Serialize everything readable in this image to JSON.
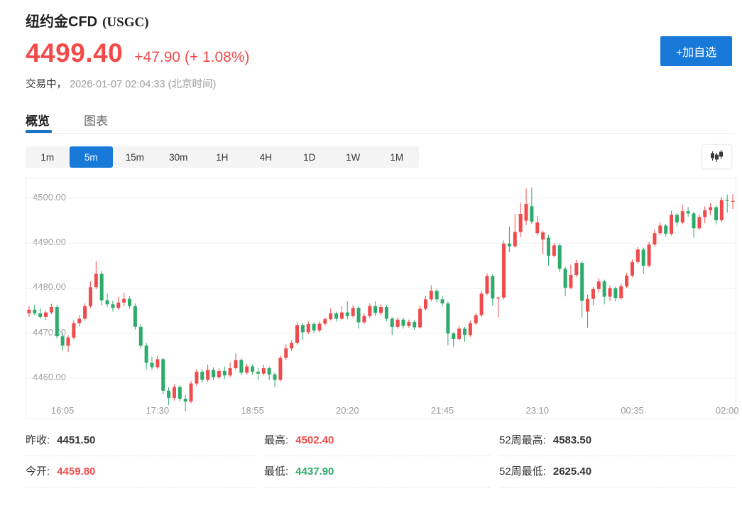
{
  "header": {
    "title": "纽约金CFD",
    "symbol": "(USGC)",
    "price": "4499.40",
    "change": "+47.90 (+ 1.08%)",
    "status": "交易中，",
    "datetime": "2026-01-07 02:04:33 (北京时间)",
    "add_watchlist_label": "+加自选"
  },
  "tabs": [
    {
      "label": "概览",
      "active": true
    },
    {
      "label": "图表",
      "active": false
    }
  ],
  "timeframes": {
    "options": [
      "1m",
      "5m",
      "15m",
      "30m",
      "1H",
      "4H",
      "1D",
      "1W",
      "1M"
    ],
    "active": "5m"
  },
  "icons": {
    "chart_style": "candlestick-chart-icon"
  },
  "colors": {
    "accent_blue": "#1879d9",
    "tab_underline_blue": "#1a72c2",
    "text_red": "#f24a48",
    "text_green": "#2cab6b",
    "candle_up_red": "#ef4b4d",
    "candle_down_green": "#2cab6b",
    "axis_text": "#999999",
    "gridline": "#f0f0f0"
  },
  "stats": {
    "columns": [
      [
        {
          "label": "昨收:",
          "value": "4451.50"
        },
        {
          "label": "今开:",
          "value": "4459.80"
        }
      ],
      [
        {
          "label": "最高:",
          "value": "4502.40"
        },
        {
          "label": "最低:",
          "value": "4437.90"
        }
      ],
      [
        {
          "label": "52周最高:",
          "value": "4583.50"
        },
        {
          "label": "52周最低:",
          "value": "2625.40"
        }
      ]
    ]
  },
  "chart_data": {
    "type": "candlestick",
    "title": "纽约金CFD (USGC) 5m",
    "interval": "5m",
    "convention": "red=up, green=down (CN)",
    "y_ticks": [
      4500,
      4490,
      4480,
      4470,
      4460
    ],
    "y_tick_labels": [
      "4500.00",
      "4490.00",
      "4480.00",
      "4470.00",
      "4460.00"
    ],
    "x_labels": [
      "16:05",
      "17:30",
      "18:55",
      "20:20",
      "21:45",
      "23:10",
      "00:35",
      "02:00"
    ],
    "x_label_indices": [
      6,
      23,
      40,
      57,
      74,
      91,
      108,
      125
    ],
    "price_top_visible": 4504.4,
    "price_bottom_visible": 4451.0,
    "grid": true,
    "candles_ohlc": [
      [
        4474.4,
        4476.0,
        4473.6,
        4475.2
      ],
      [
        4475.2,
        4476.3,
        4474.0,
        4474.4
      ],
      [
        4474.4,
        4475.5,
        4473.2,
        4473.6
      ],
      [
        4473.6,
        4475.0,
        4472.9,
        4474.6
      ],
      [
        4474.6,
        4476.5,
        4474.2,
        4475.8
      ],
      [
        4475.8,
        4476.2,
        4468.8,
        4469.3
      ],
      [
        4469.3,
        4470.1,
        4466.0,
        4467.2
      ],
      [
        4467.2,
        4469.6,
        4465.8,
        4469.0
      ],
      [
        4469.0,
        4472.8,
        4468.6,
        4472.2
      ],
      [
        4472.2,
        4474.0,
        4471.5,
        4473.2
      ],
      [
        4473.2,
        4476.6,
        4472.8,
        4476.0
      ],
      [
        4476.0,
        4481.5,
        4475.6,
        4480.2
      ],
      [
        4480.2,
        4486.0,
        4479.8,
        4483.2
      ],
      [
        4483.2,
        4483.8,
        4476.2,
        4477.3
      ],
      [
        4477.3,
        4478.8,
        4475.8,
        4476.4
      ],
      [
        4476.4,
        4477.2,
        4474.8,
        4475.6
      ],
      [
        4475.6,
        4478.0,
        4475.2,
        4476.8
      ],
      [
        4476.8,
        4479.0,
        4476.0,
        4477.6
      ],
      [
        4477.6,
        4478.2,
        4475.4,
        4476.0
      ],
      [
        4476.0,
        4476.6,
        4470.8,
        4471.4
      ],
      [
        4471.4,
        4472.0,
        4466.6,
        4467.2
      ],
      [
        4467.2,
        4467.8,
        4461.9,
        4463.4
      ],
      [
        4463.4,
        4464.8,
        4461.8,
        4462.4
      ],
      [
        4462.4,
        4465.0,
        4462.0,
        4464.2
      ],
      [
        4464.2,
        4464.6,
        4456.4,
        4457.2
      ],
      [
        4457.2,
        4458.0,
        4454.0,
        4455.6
      ],
      [
        4455.6,
        4458.6,
        4455.0,
        4458.0
      ],
      [
        4458.0,
        4458.4,
        4454.8,
        4455.4
      ],
      [
        4455.4,
        4456.2,
        4452.6,
        4454.8
      ],
      [
        4454.8,
        4459.4,
        4454.4,
        4458.8
      ],
      [
        4458.8,
        4462.0,
        4458.2,
        4461.4
      ],
      [
        4461.4,
        4462.0,
        4459.0,
        4459.6
      ],
      [
        4459.6,
        4463.0,
        4459.2,
        4461.8
      ],
      [
        4461.8,
        4462.4,
        4459.6,
        4460.2
      ],
      [
        4460.2,
        4462.2,
        4459.8,
        4461.6
      ],
      [
        4461.6,
        4462.6,
        4459.8,
        4460.6
      ],
      [
        4460.6,
        4463.5,
        4460.2,
        4462.2
      ],
      [
        4462.2,
        4465.5,
        4461.8,
        4464.0
      ],
      [
        4464.0,
        4464.4,
        4460.6,
        4461.2
      ],
      [
        4461.2,
        4463.2,
        4460.8,
        4462.6
      ],
      [
        4462.6,
        4463.0,
        4460.8,
        4461.4
      ],
      [
        4461.4,
        4462.2,
        4459.5,
        4461.0
      ],
      [
        4461.0,
        4463.0,
        4460.6,
        4462.2
      ],
      [
        4462.2,
        4462.6,
        4459.5,
        4460.8
      ],
      [
        4460.8,
        4461.2,
        4458.0,
        4459.6
      ],
      [
        4459.6,
        4465.0,
        4459.2,
        4464.5
      ],
      [
        4464.5,
        4467.5,
        4464.0,
        4466.6
      ],
      [
        4466.6,
        4468.4,
        4466.0,
        4467.8
      ],
      [
        4467.8,
        4472.5,
        4467.4,
        4471.8
      ],
      [
        4471.8,
        4472.2,
        4468.5,
        4470.2
      ],
      [
        4470.2,
        4472.6,
        4469.8,
        4472.0
      ],
      [
        4472.0,
        4472.4,
        4470.0,
        4470.6
      ],
      [
        4470.6,
        4472.6,
        4470.2,
        4472.1
      ],
      [
        4472.1,
        4473.6,
        4471.6,
        4473.1
      ],
      [
        4473.1,
        4475.5,
        4472.8,
        4474.4
      ],
      [
        4474.4,
        4474.8,
        4472.6,
        4473.2
      ],
      [
        4473.2,
        4476.0,
        4472.9,
        4474.6
      ],
      [
        4474.6,
        4477.1,
        4473.1,
        4473.8
      ],
      [
        4473.8,
        4476.2,
        4473.4,
        4475.6
      ],
      [
        4475.6,
        4476.0,
        4471.0,
        4472.4
      ],
      [
        4472.4,
        4474.4,
        4472.0,
        4473.8
      ],
      [
        4473.8,
        4476.6,
        4473.4,
        4476.0
      ],
      [
        4476.0,
        4477.0,
        4473.8,
        4474.5
      ],
      [
        4474.5,
        4476.4,
        4474.0,
        4475.8
      ],
      [
        4475.8,
        4476.2,
        4472.6,
        4473.2
      ],
      [
        4473.2,
        4473.6,
        4469.6,
        4471.4
      ],
      [
        4471.4,
        4473.5,
        4471.0,
        4473.0
      ],
      [
        4473.0,
        4473.4,
        4471.0,
        4471.6
      ],
      [
        4471.6,
        4473.0,
        4471.2,
        4472.5
      ],
      [
        4472.5,
        4472.9,
        4470.7,
        4471.3
      ],
      [
        4471.3,
        4476.2,
        4471.0,
        4475.4
      ],
      [
        4475.4,
        4478.3,
        4475.0,
        4477.5
      ],
      [
        4477.5,
        4480.6,
        4477.1,
        4479.4
      ],
      [
        4479.4,
        4479.8,
        4476.8,
        4477.5
      ],
      [
        4477.5,
        4478.3,
        4475.9,
        4476.6
      ],
      [
        4476.6,
        4477.0,
        4467.3,
        4469.9
      ],
      [
        4469.9,
        4470.3,
        4467.0,
        4468.7
      ],
      [
        4468.7,
        4471.6,
        4468.3,
        4471.0
      ],
      [
        4471.0,
        4471.4,
        4468.1,
        4469.6
      ],
      [
        4469.6,
        4472.8,
        4469.2,
        4472.2
      ],
      [
        4472.2,
        4474.5,
        4471.8,
        4474.0
      ],
      [
        4474.0,
        4479.4,
        4473.6,
        4478.8
      ],
      [
        4478.8,
        4483.3,
        4478.4,
        4482.7
      ],
      [
        4482.7,
        4483.1,
        4476.2,
        4477.7
      ],
      [
        4477.7,
        4478.1,
        4473.5,
        4477.9
      ],
      [
        4477.9,
        4490.6,
        4477.5,
        4489.9
      ],
      [
        4489.9,
        4493.7,
        4488.0,
        4489.3
      ],
      [
        4489.3,
        4496.5,
        4489.0,
        4492.5
      ],
      [
        4492.5,
        4499.0,
        4491.4,
        4496.5
      ],
      [
        4495.0,
        4502.1,
        4494.0,
        4498.7
      ],
      [
        4498.2,
        4502.4,
        4494.3,
        4494.8
      ],
      [
        4492.2,
        4496.0,
        4491.6,
        4494.6
      ],
      [
        4490.8,
        4492.8,
        4487.5,
        4492.4
      ],
      [
        4491.2,
        4491.8,
        4485.0,
        4487.2
      ],
      [
        4487.2,
        4490.0,
        4486.8,
        4489.5
      ],
      [
        4489.5,
        4489.9,
        4483.6,
        4484.3
      ],
      [
        4484.3,
        4484.7,
        4478.2,
        4480.1
      ],
      [
        4480.1,
        4485.2,
        4479.7,
        4482.9
      ],
      [
        4482.9,
        4486.3,
        4482.5,
        4485.6
      ],
      [
        4485.6,
        4486.0,
        4473.4,
        4477.2
      ],
      [
        4474.8,
        4478.6,
        4471.2,
        4477.6
      ],
      [
        4477.6,
        4480.3,
        4476.2,
        4479.8
      ],
      [
        4479.8,
        4482.2,
        4479.0,
        4481.5
      ],
      [
        4481.5,
        4481.9,
        4476.4,
        4478.1
      ],
      [
        4478.1,
        4480.6,
        4477.2,
        4480.0
      ],
      [
        4480.0,
        4480.4,
        4477.0,
        4477.8
      ],
      [
        4477.8,
        4481.0,
        4477.4,
        4480.4
      ],
      [
        4480.4,
        4483.4,
        4480.0,
        4482.8
      ],
      [
        4482.8,
        4486.4,
        4482.4,
        4485.8
      ],
      [
        4485.8,
        4489.2,
        4485.4,
        4488.6
      ],
      [
        4488.6,
        4489.0,
        4483.2,
        4485.0
      ],
      [
        4485.0,
        4490.3,
        4484.6,
        4489.7
      ],
      [
        4489.7,
        4493.0,
        4489.3,
        4492.2
      ],
      [
        4492.2,
        4494.6,
        4491.8,
        4493.9
      ],
      [
        4493.9,
        4494.3,
        4491.4,
        4492.1
      ],
      [
        4492.1,
        4497.2,
        4491.7,
        4496.3
      ],
      [
        4496.3,
        4496.7,
        4493.8,
        4494.6
      ],
      [
        4494.6,
        4498.5,
        4494.2,
        4497.1
      ],
      [
        4497.1,
        4498.0,
        4495.9,
        4496.6
      ],
      [
        4496.6,
        4497.0,
        4491.2,
        4493.3
      ],
      [
        4493.3,
        4496.4,
        4492.9,
        4495.8
      ],
      [
        4495.8,
        4498.2,
        4494.4,
        4497.3
      ],
      [
        4497.3,
        4498.9,
        4496.2,
        4498.0
      ],
      [
        4498.0,
        4498.4,
        4494.2,
        4495.1
      ],
      [
        4495.1,
        4500.2,
        4494.7,
        4499.6
      ],
      [
        4499.6,
        4500.8,
        4496.8,
        4499.4
      ],
      [
        4499.4,
        4500.9,
        4497.6,
        4499.4
      ]
    ]
  }
}
